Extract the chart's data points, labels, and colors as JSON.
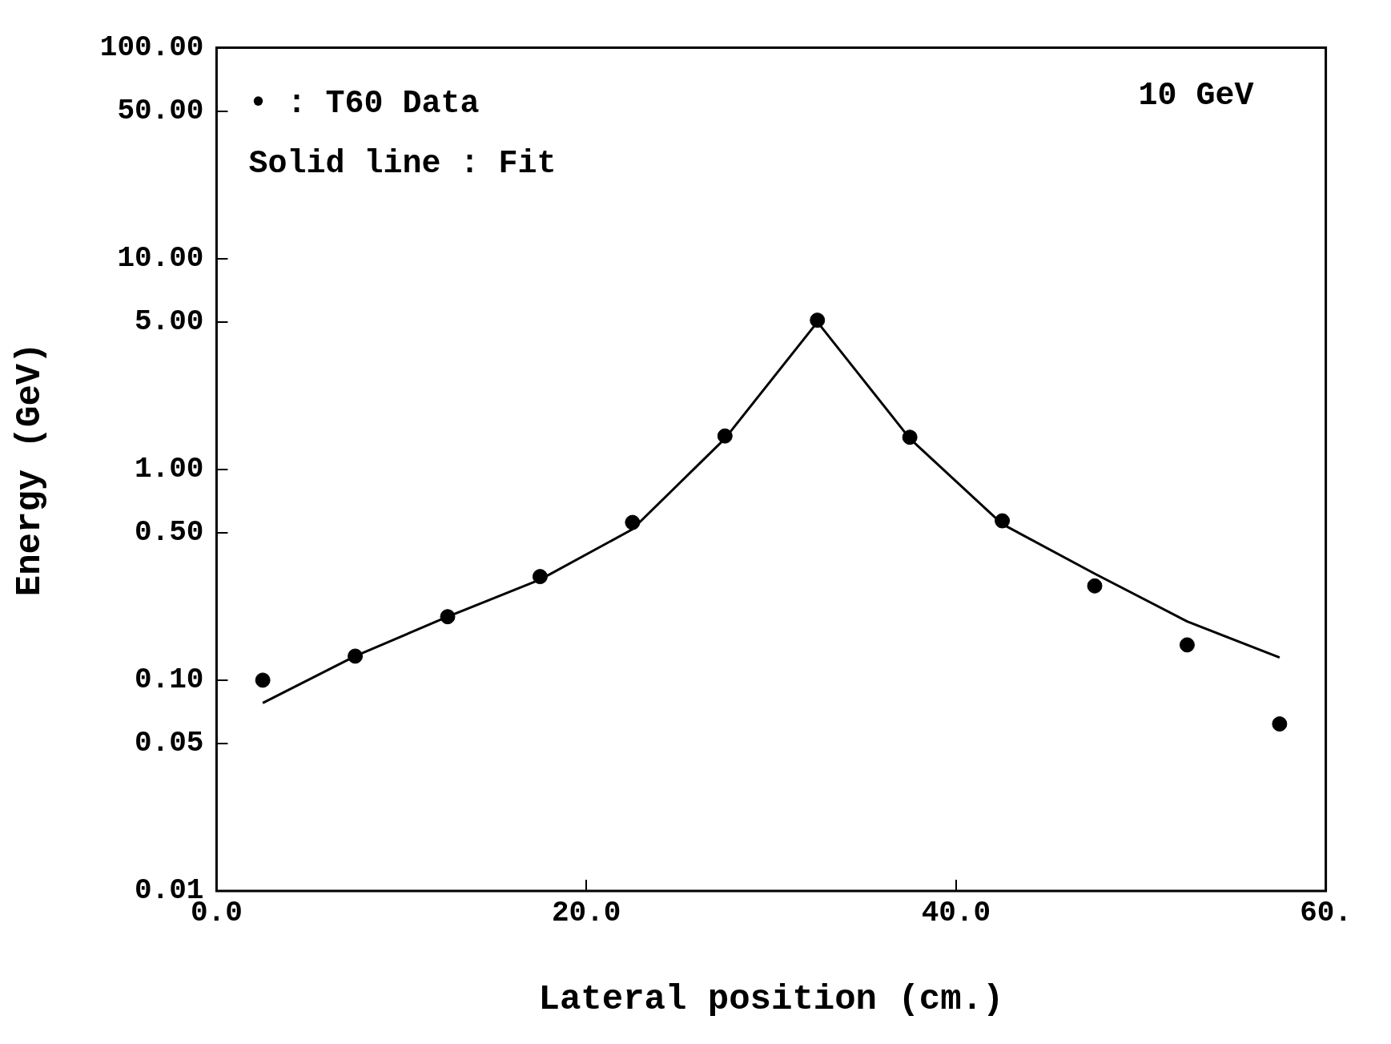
{
  "chart_data": {
    "type": "scatter",
    "xlabel": "Lateral position (cm.)",
    "ylabel": "Energy (GeV)",
    "log": "y",
    "grid": false,
    "legend": false,
    "xlim": [
      0,
      60
    ],
    "xticks": [
      {
        "value": 0,
        "label": "0.0"
      },
      {
        "value": 20,
        "label": "20.0"
      },
      {
        "value": 40,
        "label": "40.0"
      },
      {
        "value": 60,
        "label": "60."
      }
    ],
    "ylim": [
      0.01,
      100
    ],
    "yticks": [
      {
        "value": 0.01,
        "label": "0.01"
      },
      {
        "value": 0.05,
        "label": "0.05"
      },
      {
        "value": 0.1,
        "label": "0.10"
      },
      {
        "value": 0.5,
        "label": "0.50"
      },
      {
        "value": 1,
        "label": "1.00"
      },
      {
        "value": 5,
        "label": "5.00"
      },
      {
        "value": 10,
        "label": "10.00"
      },
      {
        "value": 50,
        "label": "50.00"
      },
      {
        "value": 100,
        "label": "100.00"
      }
    ],
    "annotations": [
      "• : T60 Data",
      "Solid line : Fit",
      "10 GeV"
    ],
    "series": [
      {
        "color": "#000000",
        "marker": "circle",
        "x": [
          2.5,
          7.5,
          12.5,
          17.5,
          22.5,
          27.5,
          32.5,
          37.5,
          42.5,
          47.5,
          52.5,
          57.5
        ],
        "values": [
          0.1,
          0.13,
          0.2,
          0.31,
          0.56,
          1.44,
          5.1,
          1.42,
          0.57,
          0.28,
          0.147,
          0.062
        ]
      },
      {
        "type": "line",
        "color": "#000000",
        "marker": "none",
        "line_style": "solid",
        "x": [
          2.5,
          7.5,
          12.5,
          17.5,
          22.5,
          27.5,
          32.5,
          37.5,
          42.5,
          47.5,
          52.5,
          57.5
        ],
        "values": [
          0.078,
          0.13,
          0.2,
          0.3,
          0.52,
          1.4,
          5.0,
          1.4,
          0.55,
          0.32,
          0.19,
          0.128
        ]
      }
    ]
  }
}
